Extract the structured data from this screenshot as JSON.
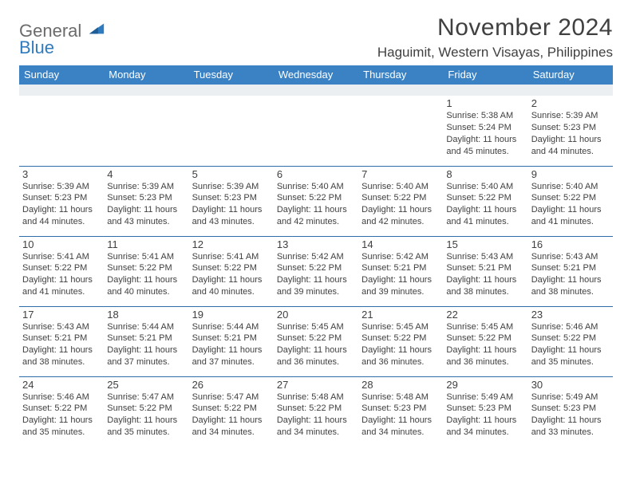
{
  "logo": {
    "line1": "General",
    "line2": "Blue"
  },
  "title": "November 2024",
  "location": "Haguimit, Western Visayas, Philippines",
  "colors": {
    "header_bg": "#3b82c4",
    "header_text": "#ffffff",
    "rule": "#2f6da8",
    "spacer_bg": "#eceff1",
    "text": "#404040",
    "logo_gray": "#6b6b6b",
    "logo_blue": "#2f7bbf"
  },
  "dayHeaders": [
    "Sunday",
    "Monday",
    "Tuesday",
    "Wednesday",
    "Thursday",
    "Friday",
    "Saturday"
  ],
  "weeks": [
    [
      null,
      null,
      null,
      null,
      null,
      {
        "n": "1",
        "sunrise": "5:38 AM",
        "sunset": "5:24 PM",
        "daylight": "11 hours and 45 minutes."
      },
      {
        "n": "2",
        "sunrise": "5:39 AM",
        "sunset": "5:23 PM",
        "daylight": "11 hours and 44 minutes."
      }
    ],
    [
      {
        "n": "3",
        "sunrise": "5:39 AM",
        "sunset": "5:23 PM",
        "daylight": "11 hours and 44 minutes."
      },
      {
        "n": "4",
        "sunrise": "5:39 AM",
        "sunset": "5:23 PM",
        "daylight": "11 hours and 43 minutes."
      },
      {
        "n": "5",
        "sunrise": "5:39 AM",
        "sunset": "5:23 PM",
        "daylight": "11 hours and 43 minutes."
      },
      {
        "n": "6",
        "sunrise": "5:40 AM",
        "sunset": "5:22 PM",
        "daylight": "11 hours and 42 minutes."
      },
      {
        "n": "7",
        "sunrise": "5:40 AM",
        "sunset": "5:22 PM",
        "daylight": "11 hours and 42 minutes."
      },
      {
        "n": "8",
        "sunrise": "5:40 AM",
        "sunset": "5:22 PM",
        "daylight": "11 hours and 41 minutes."
      },
      {
        "n": "9",
        "sunrise": "5:40 AM",
        "sunset": "5:22 PM",
        "daylight": "11 hours and 41 minutes."
      }
    ],
    [
      {
        "n": "10",
        "sunrise": "5:41 AM",
        "sunset": "5:22 PM",
        "daylight": "11 hours and 41 minutes."
      },
      {
        "n": "11",
        "sunrise": "5:41 AM",
        "sunset": "5:22 PM",
        "daylight": "11 hours and 40 minutes."
      },
      {
        "n": "12",
        "sunrise": "5:41 AM",
        "sunset": "5:22 PM",
        "daylight": "11 hours and 40 minutes."
      },
      {
        "n": "13",
        "sunrise": "5:42 AM",
        "sunset": "5:22 PM",
        "daylight": "11 hours and 39 minutes."
      },
      {
        "n": "14",
        "sunrise": "5:42 AM",
        "sunset": "5:21 PM",
        "daylight": "11 hours and 39 minutes."
      },
      {
        "n": "15",
        "sunrise": "5:43 AM",
        "sunset": "5:21 PM",
        "daylight": "11 hours and 38 minutes."
      },
      {
        "n": "16",
        "sunrise": "5:43 AM",
        "sunset": "5:21 PM",
        "daylight": "11 hours and 38 minutes."
      }
    ],
    [
      {
        "n": "17",
        "sunrise": "5:43 AM",
        "sunset": "5:21 PM",
        "daylight": "11 hours and 38 minutes."
      },
      {
        "n": "18",
        "sunrise": "5:44 AM",
        "sunset": "5:21 PM",
        "daylight": "11 hours and 37 minutes."
      },
      {
        "n": "19",
        "sunrise": "5:44 AM",
        "sunset": "5:21 PM",
        "daylight": "11 hours and 37 minutes."
      },
      {
        "n": "20",
        "sunrise": "5:45 AM",
        "sunset": "5:22 PM",
        "daylight": "11 hours and 36 minutes."
      },
      {
        "n": "21",
        "sunrise": "5:45 AM",
        "sunset": "5:22 PM",
        "daylight": "11 hours and 36 minutes."
      },
      {
        "n": "22",
        "sunrise": "5:45 AM",
        "sunset": "5:22 PM",
        "daylight": "11 hours and 36 minutes."
      },
      {
        "n": "23",
        "sunrise": "5:46 AM",
        "sunset": "5:22 PM",
        "daylight": "11 hours and 35 minutes."
      }
    ],
    [
      {
        "n": "24",
        "sunrise": "5:46 AM",
        "sunset": "5:22 PM",
        "daylight": "11 hours and 35 minutes."
      },
      {
        "n": "25",
        "sunrise": "5:47 AM",
        "sunset": "5:22 PM",
        "daylight": "11 hours and 35 minutes."
      },
      {
        "n": "26",
        "sunrise": "5:47 AM",
        "sunset": "5:22 PM",
        "daylight": "11 hours and 34 minutes."
      },
      {
        "n": "27",
        "sunrise": "5:48 AM",
        "sunset": "5:22 PM",
        "daylight": "11 hours and 34 minutes."
      },
      {
        "n": "28",
        "sunrise": "5:48 AM",
        "sunset": "5:23 PM",
        "daylight": "11 hours and 34 minutes."
      },
      {
        "n": "29",
        "sunrise": "5:49 AM",
        "sunset": "5:23 PM",
        "daylight": "11 hours and 34 minutes."
      },
      {
        "n": "30",
        "sunrise": "5:49 AM",
        "sunset": "5:23 PM",
        "daylight": "11 hours and 33 minutes."
      }
    ]
  ],
  "labels": {
    "sunrise": "Sunrise:",
    "sunset": "Sunset:",
    "daylight": "Daylight:"
  }
}
